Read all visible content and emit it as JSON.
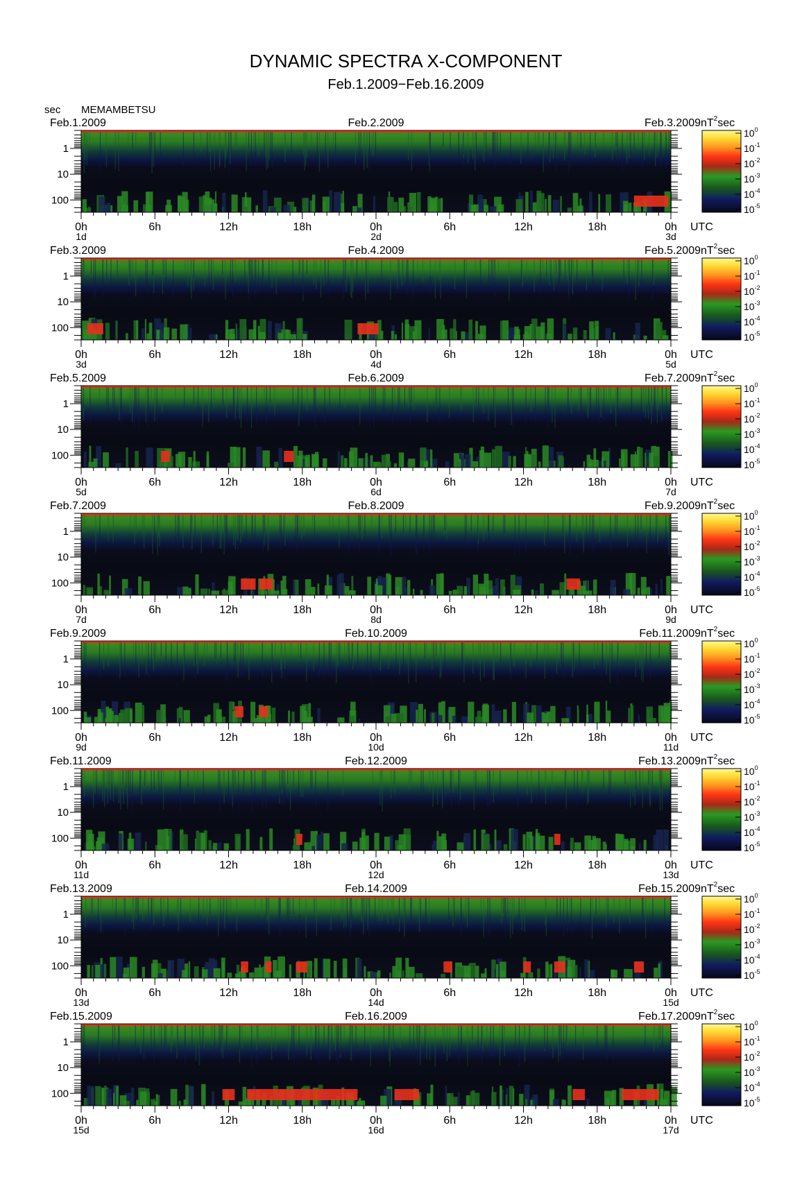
{
  "title": "DYNAMIC SPECTRA X-COMPONENT",
  "subtitle": "Feb.1.2009−Feb.16.2009",
  "y_unit": "sec",
  "station": "MEMAMBETSU",
  "colorbar_unit": "nT",
  "colorbar_unit_exp": "2",
  "colorbar_unit_suffix": "sec",
  "utc_label": "UTC",
  "colors": {
    "low": "#101a48",
    "mid": "#1f7a1c",
    "high": "#f02010",
    "max": "#ffff60"
  },
  "chart_data": {
    "type": "heatmap",
    "title": "DYNAMIC SPECTRA X-COMPONENT",
    "subtitle": "Feb.1.2009−Feb.16.2009",
    "ylabel": "sec",
    "y_scale": "log",
    "y_ticks": [
      "1",
      "10",
      "100"
    ],
    "x_ticks": [
      "0h",
      "6h",
      "12h",
      "18h",
      "0h",
      "6h",
      "12h",
      "18h",
      "0h"
    ],
    "x_unit": "UTC",
    "colorbar": {
      "unit": "nT²sec",
      "tick_base": "10",
      "tick_exps": [
        "0",
        "-1",
        "-2",
        "-3",
        "-4",
        "-5"
      ]
    },
    "panels": [
      {
        "start": "Feb.1.2009",
        "mid": "Feb.2.2009",
        "end": "Feb.3.2009",
        "days": [
          "1d",
          "2d",
          "3d"
        ],
        "strong": [
          [
            45.0,
            46.5
          ],
          [
            46.5,
            47.8
          ]
        ]
      },
      {
        "start": "Feb.3.2009",
        "mid": "Feb.4.2009",
        "end": "Feb.5.2009",
        "days": [
          "3d",
          "4d",
          "5d"
        ],
        "strong": [
          [
            0.5,
            1.8
          ],
          [
            22.5,
            24.2
          ]
        ]
      },
      {
        "start": "Feb.5.2009",
        "mid": "Feb.6.2009",
        "end": "Feb.7.2009",
        "days": [
          "5d",
          "6d",
          "7d"
        ],
        "strong": [
          [
            6.5,
            7.2
          ],
          [
            16.5,
            17.3
          ]
        ]
      },
      {
        "start": "Feb.7.2009",
        "mid": "Feb.8.2009",
        "end": "Feb.9.2009",
        "days": [
          "7d",
          "8d",
          "9d"
        ],
        "strong": [
          [
            13.0,
            14.2
          ],
          [
            14.5,
            15.6
          ],
          [
            39.5,
            40.6
          ]
        ]
      },
      {
        "start": "Feb.9.2009",
        "mid": "Feb.10.2009",
        "end": "Feb.11.2009",
        "days": [
          "9d",
          "10d",
          "11d"
        ],
        "strong": [
          [
            12.5,
            13.2
          ],
          [
            14.5,
            15.2
          ]
        ]
      },
      {
        "start": "Feb.11.2009",
        "mid": "Feb.12.2009",
        "end": "Feb.13.2009",
        "days": [
          "11d",
          "12d",
          "13d"
        ],
        "strong": [
          [
            17.5,
            18.0
          ],
          [
            38.5,
            39.0
          ]
        ]
      },
      {
        "start": "Feb.13.2009",
        "mid": "Feb.14.2009",
        "end": "Feb.15.2009",
        "days": [
          "13d",
          "14d",
          "15d"
        ],
        "strong": [
          [
            13.0,
            13.6
          ],
          [
            15.0,
            15.5
          ],
          [
            17.5,
            18.4
          ],
          [
            29.5,
            30.2
          ],
          [
            36.0,
            36.6
          ],
          [
            38.5,
            39.4
          ],
          [
            45.0,
            45.8
          ]
        ]
      },
      {
        "start": "Feb.15.2009",
        "mid": "Feb.16.2009",
        "end": "Feb.17.2009",
        "days": [
          "15d",
          "16d",
          "17d"
        ],
        "strong": [
          [
            11.5,
            12.5
          ],
          [
            13.5,
            20.5
          ],
          [
            20.5,
            22.5
          ],
          [
            25.5,
            27.5
          ],
          [
            40.0,
            41.0
          ],
          [
            44.0,
            47.0
          ]
        ]
      }
    ]
  }
}
